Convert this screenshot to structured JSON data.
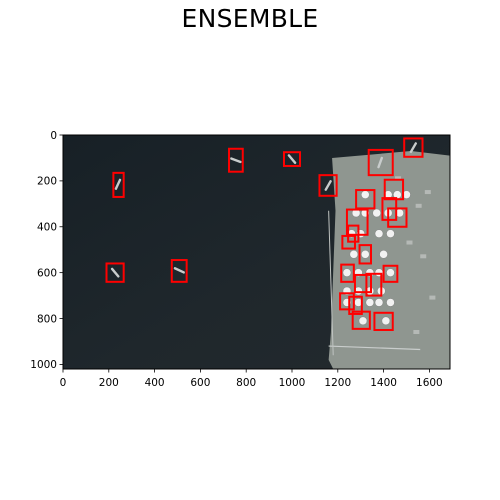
{
  "chart_data": {
    "type": "image-with-detections",
    "title": "ENSEMBLE",
    "xlabel": "",
    "ylabel": "",
    "xlim": [
      0,
      1690
    ],
    "ylim": [
      1020,
      0
    ],
    "xticks": [
      0,
      200,
      400,
      600,
      800,
      1000,
      1200,
      1400,
      1600
    ],
    "yticks": [
      0,
      200,
      400,
      600,
      800,
      1000
    ],
    "grid": false,
    "box_color": "#ff0000",
    "boxes": [
      {
        "x0": 220,
        "y0": 165,
        "x1": 265,
        "y1": 270
      },
      {
        "x0": 190,
        "y0": 560,
        "x1": 265,
        "y1": 640
      },
      {
        "x0": 475,
        "y0": 545,
        "x1": 540,
        "y1": 640
      },
      {
        "x0": 725,
        "y0": 60,
        "x1": 785,
        "y1": 160
      },
      {
        "x0": 965,
        "y0": 75,
        "x1": 1035,
        "y1": 135
      },
      {
        "x0": 1120,
        "y0": 175,
        "x1": 1195,
        "y1": 265
      },
      {
        "x0": 1490,
        "y0": 15,
        "x1": 1570,
        "y1": 95
      },
      {
        "x0": 1335,
        "y0": 65,
        "x1": 1440,
        "y1": 175
      },
      {
        "x0": 1280,
        "y0": 240,
        "x1": 1360,
        "y1": 320
      },
      {
        "x0": 1405,
        "y0": 195,
        "x1": 1485,
        "y1": 280
      },
      {
        "x0": 1395,
        "y0": 275,
        "x1": 1455,
        "y1": 370
      },
      {
        "x0": 1420,
        "y0": 320,
        "x1": 1500,
        "y1": 400
      },
      {
        "x0": 1240,
        "y0": 325,
        "x1": 1330,
        "y1": 435
      },
      {
        "x0": 1245,
        "y0": 395,
        "x1": 1290,
        "y1": 465
      },
      {
        "x0": 1220,
        "y0": 440,
        "x1": 1275,
        "y1": 495
      },
      {
        "x0": 1295,
        "y0": 480,
        "x1": 1345,
        "y1": 560
      },
      {
        "x0": 1215,
        "y0": 565,
        "x1": 1270,
        "y1": 640
      },
      {
        "x0": 1400,
        "y0": 570,
        "x1": 1460,
        "y1": 640
      },
      {
        "x0": 1275,
        "y0": 610,
        "x1": 1345,
        "y1": 685
      },
      {
        "x0": 1325,
        "y0": 605,
        "x1": 1390,
        "y1": 700
      },
      {
        "x0": 1210,
        "y0": 690,
        "x1": 1270,
        "y1": 760
      },
      {
        "x0": 1250,
        "y0": 705,
        "x1": 1305,
        "y1": 780
      },
      {
        "x0": 1265,
        "y0": 770,
        "x1": 1340,
        "y1": 845
      },
      {
        "x0": 1360,
        "y0": 775,
        "x1": 1440,
        "y1": 850
      }
    ]
  },
  "image": {
    "colors": {
      "water": "#1b2228",
      "water_light": "#232b30",
      "land": "#8f9690",
      "tank": "#f2f2f2",
      "vessel": "#c8cccc"
    }
  }
}
